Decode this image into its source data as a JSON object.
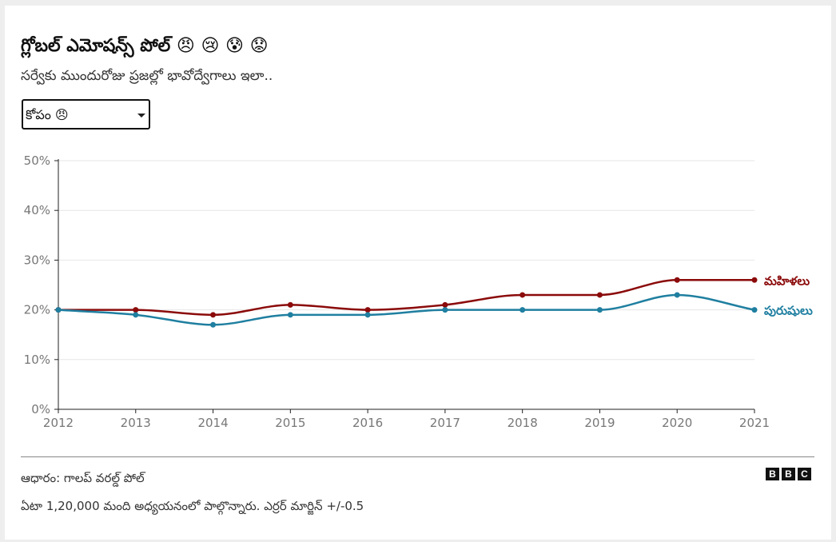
{
  "header": {
    "title": "గ్లోబల్ ఎమోషన్స్ పోల్ 😠 😢 😰 😟",
    "subtitle": "సర్వేకు ముందురోజు ప్రజల్లో భావోద్వేగాలు ఇలా.."
  },
  "selector": {
    "selected": "కోపం 😠"
  },
  "chart_data": {
    "type": "line",
    "x": [
      2012,
      2013,
      2014,
      2015,
      2016,
      2017,
      2018,
      2019,
      2020,
      2021
    ],
    "ylim": [
      0,
      50
    ],
    "yticks": [
      "0%",
      "10%",
      "20%",
      "30%",
      "40%",
      "50%"
    ],
    "ytick_values": [
      0,
      10,
      20,
      30,
      40,
      50
    ],
    "xticks": [
      "2012",
      "2013",
      "2014",
      "2015",
      "2016",
      "2017",
      "2018",
      "2019",
      "2020",
      "2021"
    ],
    "grid": true,
    "series": [
      {
        "name": "మహిళలు",
        "color": "#8b0a0a",
        "values": [
          20,
          20,
          19,
          21,
          20,
          21,
          23,
          23,
          26,
          26
        ]
      },
      {
        "name": "పురుషులు",
        "color": "#1f7fa0",
        "values": [
          20,
          19,
          17,
          19,
          19,
          20,
          20,
          20,
          23,
          20
        ]
      }
    ]
  },
  "footer": {
    "source": "ఆధారం: గాలప్ వరల్డ్ పోల్",
    "note": "ఏటా 1,20,000 మంది అధ్యయనంలో పాల్గొన్నారు. ఎర్రర్ మార్జిన్ +/-0.5",
    "logo_letters": [
      "B",
      "B",
      "C"
    ]
  }
}
